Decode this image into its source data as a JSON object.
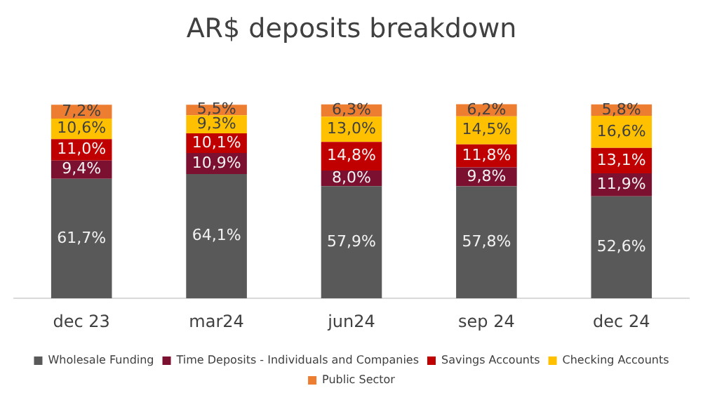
{
  "chart_data": {
    "type": "bar",
    "stacked": true,
    "title": "AR$ deposits breakdown",
    "categories": [
      "dec 23",
      "mar24",
      "jun24",
      "sep 24",
      "dec 24"
    ],
    "legend": "bottom",
    "grid": false,
    "tick_labels": "x",
    "series": [
      {
        "name": "Wholesale Funding",
        "color": "#595959",
        "values": [
          61.7,
          64.1,
          57.9,
          57.8,
          52.6
        ],
        "value_labels": [
          "61,7%",
          "64,1%",
          "57,9%",
          "57,8%",
          "52,6%"
        ]
      },
      {
        "name": "Time Deposits - Individuals and Companies",
        "color": "#7b1030",
        "values": [
          9.4,
          10.9,
          8.0,
          9.8,
          11.9
        ],
        "value_labels": [
          "9,4%",
          "10,9%",
          "8,0%",
          "9,8%",
          "11,9%"
        ]
      },
      {
        "name": "Savings Accounts",
        "color": "#c00000",
        "values": [
          11.0,
          10.1,
          14.8,
          11.8,
          13.1
        ],
        "value_labels": [
          "11,0%",
          "10,1%",
          "14,8%",
          "11,8%",
          "13,1%"
        ]
      },
      {
        "name": "Checking Accounts",
        "color": "#ffc000",
        "values": [
          10.6,
          9.3,
          13.0,
          14.5,
          16.6
        ],
        "value_labels": [
          "10,6%",
          "9,3%",
          "13,0%",
          "14,5%",
          "16,6%"
        ]
      },
      {
        "name": "Public Sector",
        "color": "#ed7d31",
        "values": [
          7.2,
          5.5,
          6.3,
          6.2,
          5.8
        ],
        "value_labels": [
          "7,2%",
          "5,5%",
          "6,3%",
          "6,2%",
          "5,8%"
        ]
      }
    ]
  }
}
